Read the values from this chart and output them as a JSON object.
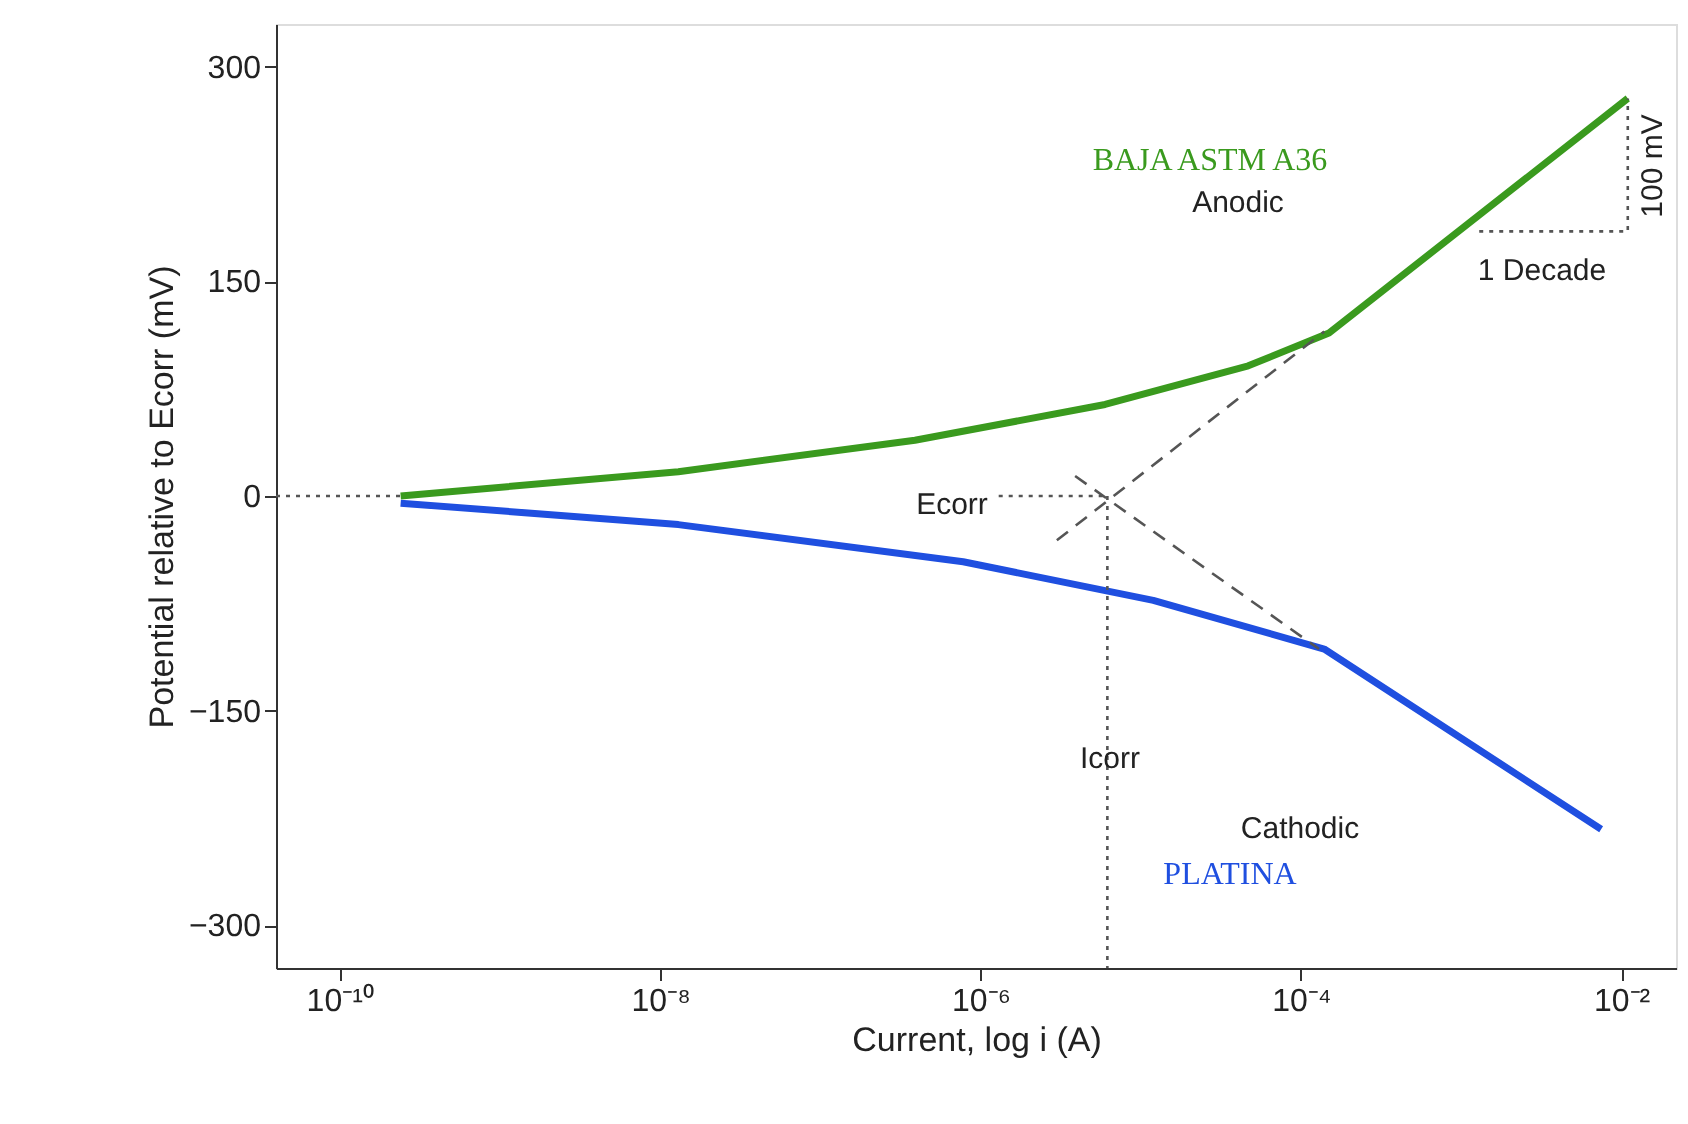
{
  "chart_data": {
    "type": "line",
    "xlabel": "Current, log i (A)",
    "ylabel": "Potential relative to Ecorr (mV)",
    "log": "x",
    "grid": false,
    "marker": "none",
    "xlim": [
      4e-11,
      0.022
    ],
    "ylim": [
      -330,
      330
    ],
    "xticks": [
      {
        "value": 1e-10,
        "label": "10⁻¹⁰"
      },
      {
        "value": 1e-08,
        "label": "10⁻⁸"
      },
      {
        "value": 1e-06,
        "label": "10⁻⁶"
      },
      {
        "value": 0.0001,
        "label": "10⁻⁴"
      },
      {
        "value": 0.01,
        "label": "10⁻²"
      }
    ],
    "yticks": [
      {
        "value": -300,
        "label": "−300"
      },
      {
        "value": -150,
        "label": "−150"
      },
      0,
      150,
      300
    ],
    "series": [
      {
        "name": "BAJA ASTM A36",
        "color": "#3a9a1e",
        "line_style": "solid",
        "x": [
          2.4e-10,
          1.3e-08,
          3.9e-07,
          6e-06,
          4.7e-05,
          0.00015,
          0.011
        ],
        "values": [
          0,
          17,
          39,
          64,
          91,
          114,
          278
        ]
      },
      {
        "name": "PLATINA",
        "color": "#1f4fe0",
        "line_style": "solid",
        "x": [
          2.4e-10,
          1.3e-08,
          7.8e-07,
          1.2e-05,
          0.00014,
          0.0075
        ],
        "values": [
          -5,
          -20,
          -46,
          -73,
          -107,
          -233
        ]
      },
      {
        "color": "#555555",
        "line_style": "dashed",
        "x": [
          3e-06,
          0.00014
        ],
        "values": [
          -31,
          115
        ]
      },
      {
        "color": "#555555",
        "line_style": "dashed",
        "x": [
          3.9e-06,
          0.00013
        ],
        "values": [
          14,
          -107
        ]
      },
      {
        "color": "#555555",
        "line_style": "dotted",
        "x": [
          4e-11,
          2.4e-10
        ],
        "values": [
          0,
          0
        ]
      },
      {
        "color": "#555555",
        "line_style": "dotted",
        "x": [
          1.3e-06,
          6.2e-06
        ],
        "values": [
          0,
          0
        ]
      },
      {
        "color": "#555555",
        "line_style": "dotted",
        "x": [
          6.2e-06,
          6.2e-06
        ],
        "values": [
          0,
          -330
        ]
      },
      {
        "color": "#555555",
        "line_style": "dotted",
        "x": [
          0.0013,
          0.011,
          0.011
        ],
        "values": [
          185,
          185,
          278
        ]
      }
    ],
    "annotations": [
      "Anodic",
      "1 Decade",
      "100 mV",
      "Ecorr",
      "Icorr",
      "Cathodic"
    ]
  }
}
